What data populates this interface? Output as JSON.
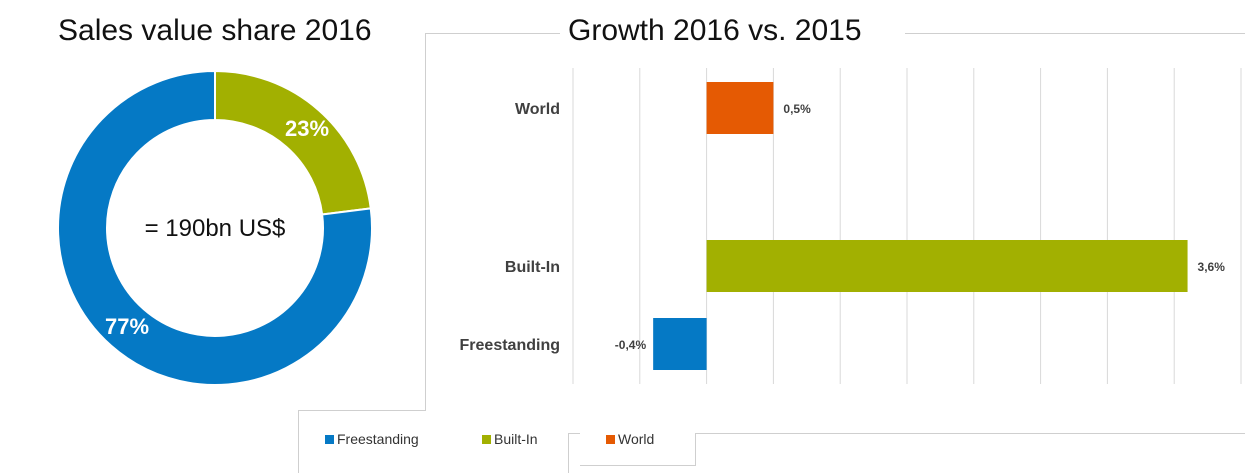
{
  "donut_title": "Sales value share 2016",
  "bar_title": "Growth 2016 vs. 2015",
  "donut_center_label": "= 190bn US$",
  "colors": {
    "freestanding": "#0579C5",
    "built_in": "#A2B001",
    "world": "#E55A03",
    "grid": "#d9d9d9"
  },
  "legend": [
    {
      "label": "Freestanding",
      "color": "#0579C5"
    },
    {
      "label": "Built-In",
      "color": "#A2B001"
    },
    {
      "label": "World",
      "color": "#E55A03"
    }
  ],
  "chart_data": [
    {
      "type": "pie",
      "title": "Sales value share 2016",
      "center_label": "= 190bn US$",
      "categories": [
        "Built-In",
        "Freestanding"
      ],
      "values": [
        23,
        77
      ],
      "labels": [
        "23%",
        "77%"
      ],
      "colors": [
        "#A2B001",
        "#0579C5"
      ]
    },
    {
      "type": "bar",
      "orientation": "horizontal",
      "title": "Growth 2016 vs. 2015",
      "categories": [
        "World",
        "Built-In",
        "Freestanding"
      ],
      "values": [
        0.5,
        3.6,
        -0.4
      ],
      "labels": [
        "0,5%",
        "3,6%",
        "-0,4%"
      ],
      "colors": [
        "#E55A03",
        "#A2B001",
        "#0579C5"
      ],
      "xlim": [
        -1.0,
        4.0
      ],
      "grid": true,
      "legend": "bottom"
    }
  ]
}
